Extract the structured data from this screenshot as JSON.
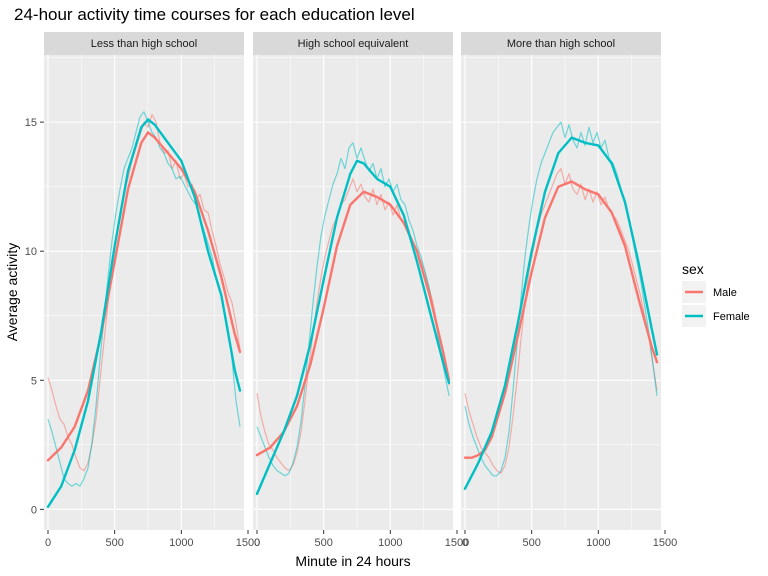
{
  "chart_data": {
    "type": "line",
    "title": "24-hour activity time courses for each education level",
    "xlabel": "Minute in 24 hours",
    "ylabel": "Average activity",
    "xlim": [
      -30,
      1470
    ],
    "ylim": [
      -0.8,
      17.6
    ],
    "x_ticks": [
      0,
      500,
      1000,
      1500
    ],
    "x_tick_labels": [
      "0",
      "500",
      "1000",
      "1500"
    ],
    "y_ticks": [
      0,
      5,
      10,
      15
    ],
    "y_tick_labels": [
      "0",
      "5",
      "10",
      "15"
    ],
    "grid": true,
    "legend": {
      "title": "sex",
      "placement": "right",
      "entries": [
        {
          "label": "Male",
          "color": "#F8766D"
        },
        {
          "label": "Female",
          "color": "#00BFC4"
        }
      ]
    },
    "colors": {
      "Male": "#F8766D",
      "Female": "#00BFC4",
      "panel_bg": "#EBEBEB",
      "strip_bg": "#D9D9D9"
    },
    "panels": [
      {
        "label": "Less than high school",
        "smooth": [
          {
            "sex": "Male",
            "x": [
              0,
              100,
              200,
              300,
              400,
              500,
              600,
              700,
              750,
              800,
              900,
              1000,
              1100,
              1200,
              1300,
              1400,
              1440
            ],
            "y": [
              1.9,
              2.4,
              3.2,
              4.6,
              6.8,
              9.6,
              12.4,
              14.2,
              14.6,
              14.4,
              13.8,
              13.2,
              12.3,
              10.8,
              9.0,
              6.8,
              6.1
            ]
          },
          {
            "sex": "Female",
            "x": [
              0,
              100,
              200,
              300,
              400,
              500,
              600,
              700,
              750,
              800,
              900,
              1000,
              1100,
              1200,
              1300,
              1400,
              1440
            ],
            "y": [
              0.1,
              0.9,
              2.3,
              4.2,
              6.9,
              10.2,
              13.1,
              14.8,
              15.1,
              14.9,
              14.2,
              13.5,
              12.1,
              10.0,
              8.3,
              5.4,
              4.6
            ]
          }
        ],
        "raw": [
          {
            "sex": "Male",
            "x": [
              0,
              30,
              60,
              90,
              120,
              150,
              180,
              210,
              240,
              270,
              300,
              330,
              360,
              390,
              420,
              450,
              480,
              510,
              540,
              570,
              600,
              630,
              660,
              690,
              720,
              750,
              780,
              810,
              840,
              870,
              900,
              930,
              960,
              990,
              1020,
              1050,
              1080,
              1110,
              1140,
              1170,
              1200,
              1230,
              1260,
              1290,
              1320,
              1350,
              1380,
              1410,
              1440
            ],
            "y": [
              5.1,
              4.6,
              4.0,
              3.5,
              3.3,
              2.8,
              2.5,
              2.0,
              1.6,
              1.5,
              1.8,
              2.5,
              3.5,
              5.0,
              6.5,
              8.0,
              9.5,
              10.5,
              11.5,
              12.3,
              12.8,
              13.5,
              14.0,
              14.5,
              15.0,
              14.8,
              15.3,
              15.0,
              14.2,
              13.8,
              13.9,
              13.2,
              13.5,
              12.8,
              13.0,
              12.5,
              12.6,
              12.0,
              12.2,
              11.6,
              11.5,
              10.8,
              10.2,
              9.5,
              9.0,
              8.4,
              8.0,
              7.2,
              6.2
            ]
          },
          {
            "sex": "Female",
            "x": [
              0,
              30,
              60,
              90,
              120,
              150,
              180,
              210,
              240,
              270,
              300,
              330,
              360,
              390,
              420,
              450,
              480,
              510,
              540,
              570,
              600,
              630,
              660,
              690,
              720,
              750,
              780,
              810,
              840,
              870,
              900,
              930,
              960,
              990,
              1020,
              1050,
              1080,
              1110,
              1140,
              1170,
              1200,
              1230,
              1260,
              1290,
              1320,
              1350,
              1380,
              1410,
              1440
            ],
            "y": [
              3.5,
              3.0,
              2.4,
              1.8,
              1.2,
              1.0,
              0.9,
              1.0,
              0.9,
              1.2,
              1.6,
              2.6,
              4.0,
              5.8,
              7.4,
              9.0,
              10.4,
              11.5,
              12.4,
              13.2,
              13.6,
              14.0,
              14.6,
              15.2,
              15.4,
              15.0,
              14.6,
              14.4,
              14.0,
              13.8,
              13.4,
              13.2,
              12.8,
              12.9,
              12.6,
              12.3,
              12.0,
              11.8,
              11.3,
              10.8,
              10.3,
              9.8,
              9.0,
              8.4,
              7.8,
              7.0,
              5.8,
              4.2,
              3.2
            ]
          }
        ]
      },
      {
        "label": "High school equivalent",
        "smooth": [
          {
            "sex": "Male",
            "x": [
              0,
              100,
              200,
              300,
              400,
              500,
              600,
              700,
              800,
              900,
              1000,
              1100,
              1200,
              1300,
              1400,
              1440
            ],
            "y": [
              2.1,
              2.4,
              3.0,
              4.0,
              5.6,
              7.8,
              10.2,
              11.8,
              12.3,
              12.1,
              11.8,
              11.1,
              10.0,
              8.2,
              6.0,
              5.0
            ]
          },
          {
            "sex": "Female",
            "x": [
              0,
              100,
              200,
              300,
              400,
              500,
              600,
              700,
              750,
              800,
              900,
              1000,
              1100,
              1200,
              1300,
              1400,
              1440
            ],
            "y": [
              0.6,
              1.8,
              3.0,
              4.4,
              6.4,
              8.9,
              11.3,
              13.0,
              13.5,
              13.4,
              12.8,
              12.5,
              11.4,
              9.6,
              7.6,
              5.6,
              4.9
            ]
          }
        ],
        "raw": [
          {
            "sex": "Male",
            "x": [
              0,
              30,
              60,
              90,
              120,
              150,
              180,
              210,
              240,
              270,
              300,
              330,
              360,
              390,
              420,
              450,
              480,
              510,
              540,
              570,
              600,
              630,
              660,
              690,
              720,
              750,
              780,
              810,
              840,
              870,
              900,
              930,
              960,
              990,
              1020,
              1050,
              1080,
              1110,
              1140,
              1170,
              1200,
              1230,
              1260,
              1290,
              1320,
              1350,
              1380,
              1410,
              1440
            ],
            "y": [
              4.5,
              3.6,
              3.0,
              2.5,
              2.3,
              2.0,
              1.8,
              1.6,
              1.5,
              1.7,
              2.2,
              3.0,
              4.2,
              5.6,
              6.8,
              8.0,
              9.0,
              9.8,
              10.4,
              11.0,
              11.3,
              11.8,
              12.0,
              12.4,
              12.8,
              12.3,
              12.6,
              12.1,
              11.9,
              12.4,
              11.8,
              12.2,
              11.6,
              11.9,
              11.4,
              11.8,
              11.2,
              11.0,
              10.8,
              10.2,
              10.0,
              9.6,
              9.2,
              8.6,
              8.0,
              7.2,
              6.5,
              5.5,
              4.8
            ]
          },
          {
            "sex": "Female",
            "x": [
              0,
              30,
              60,
              90,
              120,
              150,
              180,
              210,
              240,
              270,
              300,
              330,
              360,
              390,
              420,
              450,
              480,
              510,
              540,
              570,
              600,
              630,
              660,
              690,
              720,
              750,
              780,
              810,
              840,
              870,
              900,
              930,
              960,
              990,
              1020,
              1050,
              1080,
              1110,
              1140,
              1170,
              1200,
              1230,
              1260,
              1290,
              1320,
              1350,
              1380,
              1410,
              1440
            ],
            "y": [
              3.2,
              2.8,
              2.4,
              2.0,
              1.7,
              1.5,
              1.4,
              1.3,
              1.4,
              1.8,
              2.4,
              3.4,
              4.8,
              6.4,
              8.0,
              9.4,
              10.6,
              11.4,
              12.0,
              12.6,
              13.0,
              13.6,
              13.2,
              14.0,
              14.2,
              13.6,
              14.0,
              13.5,
              13.1,
              13.4,
              12.8,
              13.2,
              12.5,
              12.8,
              12.3,
              12.6,
              12.0,
              11.8,
              11.2,
              10.8,
              10.2,
              9.8,
              9.2,
              8.6,
              7.8,
              7.0,
              6.0,
              5.2,
              4.4
            ]
          }
        ]
      },
      {
        "label": "More than high school",
        "smooth": [
          {
            "sex": "Male",
            "x": [
              0,
              50,
              100,
              150,
              200,
              300,
              400,
              500,
              600,
              700,
              800,
              900,
              1000,
              1100,
              1200,
              1300,
              1400,
              1440
            ],
            "y": [
              2.0,
              2.0,
              2.1,
              2.3,
              2.8,
              4.5,
              6.8,
              9.2,
              11.3,
              12.5,
              12.7,
              12.4,
              12.2,
              11.5,
              10.2,
              8.2,
              6.3,
              5.7
            ]
          },
          {
            "sex": "Female",
            "x": [
              0,
              50,
              100,
              150,
              200,
              300,
              400,
              500,
              600,
              700,
              800,
              900,
              1000,
              1100,
              1200,
              1300,
              1400,
              1440
            ],
            "y": [
              0.8,
              1.3,
              1.8,
              2.4,
              3.0,
              4.8,
              7.3,
              10.0,
              12.3,
              13.8,
              14.4,
              14.2,
              14.1,
              13.4,
              11.9,
              9.6,
              7.0,
              6.0
            ]
          }
        ],
        "raw": [
          {
            "sex": "Male",
            "x": [
              0,
              30,
              60,
              90,
              120,
              150,
              180,
              210,
              240,
              270,
              300,
              330,
              360,
              390,
              420,
              450,
              480,
              510,
              540,
              570,
              600,
              630,
              660,
              690,
              720,
              750,
              780,
              810,
              840,
              870,
              900,
              930,
              960,
              990,
              1020,
              1050,
              1080,
              1110,
              1140,
              1170,
              1200,
              1230,
              1260,
              1290,
              1320,
              1350,
              1380,
              1410,
              1440
            ],
            "y": [
              4.5,
              3.8,
              3.3,
              2.8,
              2.4,
              2.2,
              2.0,
              1.7,
              1.5,
              1.4,
              1.7,
              2.4,
              3.6,
              5.0,
              6.6,
              8.0,
              9.2,
              10.0,
              10.8,
              11.4,
              11.8,
              12.2,
              12.6,
              13.0,
              13.2,
              12.6,
              13.0,
              12.4,
              12.2,
              12.6,
              12.0,
              12.4,
              11.9,
              12.3,
              11.8,
              12.1,
              11.6,
              11.4,
              11.2,
              10.8,
              10.4,
              10.0,
              9.4,
              8.8,
              8.2,
              7.4,
              6.6,
              5.6,
              4.6
            ]
          },
          {
            "sex": "Female",
            "x": [
              0,
              30,
              60,
              90,
              120,
              150,
              180,
              210,
              240,
              270,
              300,
              330,
              360,
              390,
              420,
              450,
              480,
              510,
              540,
              570,
              600,
              630,
              660,
              690,
              720,
              750,
              780,
              810,
              840,
              870,
              900,
              930,
              960,
              990,
              1020,
              1050,
              1080,
              1110,
              1140,
              1170,
              1200,
              1230,
              1260,
              1290,
              1320,
              1350,
              1380,
              1410,
              1440
            ],
            "y": [
              4.0,
              3.3,
              2.8,
              2.4,
              2.0,
              1.7,
              1.5,
              1.3,
              1.3,
              1.5,
              2.0,
              3.0,
              4.6,
              6.4,
              8.2,
              9.8,
              11.0,
              12.0,
              12.8,
              13.4,
              13.8,
              14.2,
              14.6,
              14.8,
              15.0,
              14.4,
              14.9,
              14.3,
              14.0,
              14.6,
              14.1,
              14.8,
              14.2,
              14.6,
              14.0,
              14.3,
              13.6,
              13.4,
              13.0,
              12.4,
              11.8,
              11.2,
              10.4,
              9.6,
              8.8,
              7.8,
              6.8,
              5.6,
              4.4
            ]
          }
        ]
      }
    ]
  }
}
